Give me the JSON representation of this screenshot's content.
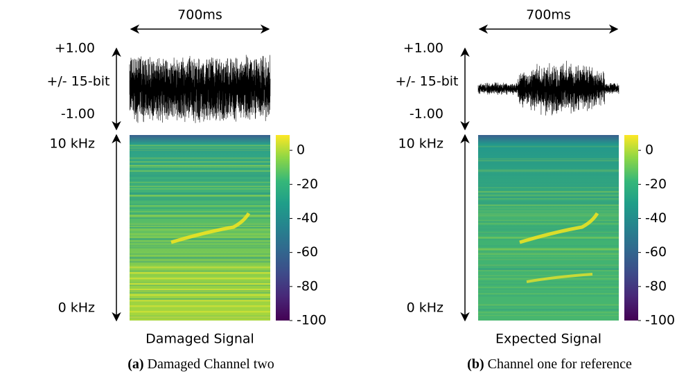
{
  "panels": [
    {
      "duration": "700ms",
      "amp_top": "+1.00",
      "amp_mid": "+/- 15-bit",
      "amp_bottom": "-1.00",
      "freq_top": "10 kHz",
      "freq_bottom": "0 kHz",
      "colorbar_lim": [
        -100,
        9
      ],
      "colorbar_ticks": [
        0,
        -20,
        -40,
        -60,
        -80,
        -100
      ],
      "label": "Damaged Signal",
      "caption_tag": "(a)",
      "caption": "Damaged Channel two"
    },
    {
      "duration": "700ms",
      "amp_top": "+1.00",
      "amp_mid": "+/- 15-bit",
      "amp_bottom": "-1.00",
      "freq_top": "10 kHz",
      "freq_bottom": "0 kHz",
      "colorbar_lim": [
        -100,
        9
      ],
      "colorbar_ticks": [
        0,
        -20,
        -40,
        -60,
        -80,
        -100
      ],
      "label": "Expected Signal",
      "caption_tag": "(b)",
      "caption": "Channel one for reference"
    }
  ]
}
